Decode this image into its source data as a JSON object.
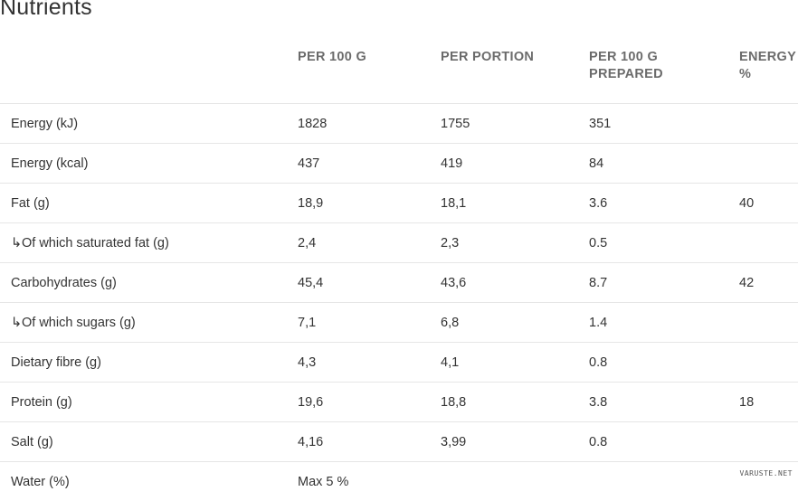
{
  "title": "Nutrients",
  "columns": [
    "",
    "PER 100 G",
    "PER PORTION",
    "PER 100 G PREPARED",
    "ENERGY %"
  ],
  "rows": [
    {
      "label": "Energy (kJ)",
      "sub": false,
      "per100": "1828",
      "portion": "1755",
      "prepared": "351",
      "energy": ""
    },
    {
      "label": "Energy (kcal)",
      "sub": false,
      "per100": "437",
      "portion": "419",
      "prepared": "84",
      "energy": ""
    },
    {
      "label": "Fat (g)",
      "sub": false,
      "per100": "18,9",
      "portion": "18,1",
      "prepared": "3.6",
      "energy": "40"
    },
    {
      "label": "Of which saturated fat (g)",
      "sub": true,
      "per100": "2,4",
      "portion": "2,3",
      "prepared": "0.5",
      "energy": ""
    },
    {
      "label": "Carbohydrates (g)",
      "sub": false,
      "per100": "45,4",
      "portion": "43,6",
      "prepared": "8.7",
      "energy": "42"
    },
    {
      "label": "Of which sugars (g)",
      "sub": true,
      "per100": "7,1",
      "portion": "6,8",
      "prepared": "1.4",
      "energy": ""
    },
    {
      "label": "Dietary fibre (g)",
      "sub": false,
      "per100": "4,3",
      "portion": "4,1",
      "prepared": "0.8",
      "energy": ""
    },
    {
      "label": "Protein (g)",
      "sub": false,
      "per100": "19,6",
      "portion": "18,8",
      "prepared": "3.8",
      "energy": "18"
    },
    {
      "label": "Salt (g)",
      "sub": false,
      "per100": "4,16",
      "portion": "3,99",
      "prepared": "0.8",
      "energy": ""
    },
    {
      "label": "Water (%)",
      "sub": false,
      "per100": "Max 5 %",
      "portion": "",
      "prepared": "",
      "energy": ""
    }
  ],
  "sub_marker": "↳",
  "watermark": "VARUSTE.NET"
}
